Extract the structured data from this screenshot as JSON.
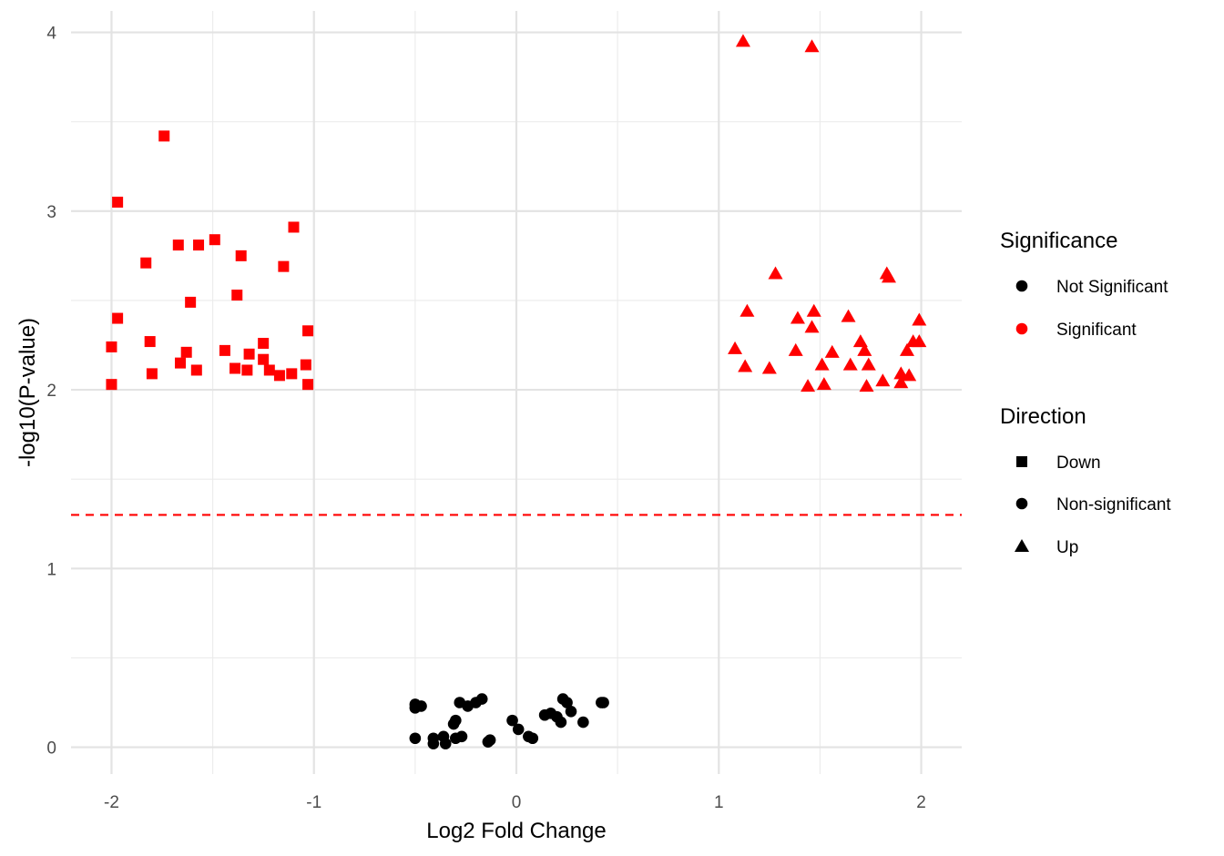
{
  "chart_data": {
    "type": "scatter",
    "title": "",
    "xlabel": "Log2 Fold Change",
    "ylabel": "-log10(P-value)",
    "xlim": [
      -2.2,
      2.2
    ],
    "ylim": [
      -0.15,
      4.12
    ],
    "x_ticks": [
      -2,
      -1,
      0,
      1,
      2
    ],
    "x_tick_labels": [
      "-2",
      "-1",
      "0",
      "1",
      "2"
    ],
    "y_ticks": [
      0,
      1,
      2,
      3,
      4
    ],
    "y_tick_labels": [
      "0",
      "1",
      "2",
      "3",
      "4"
    ],
    "grid": true,
    "threshold": {
      "y": 1.3,
      "style": "dashed",
      "color": "#ff0000"
    },
    "colors": {
      "Significant": "#ff0000",
      "Not Significant": "#000000"
    },
    "legends": [
      {
        "title": "Significance",
        "entries": [
          {
            "label": "Not Significant",
            "shape": "circle",
            "color": "#000000"
          },
          {
            "label": "Significant",
            "shape": "circle",
            "color": "#ff0000"
          }
        ]
      },
      {
        "title": "Direction",
        "entries": [
          {
            "label": "Down",
            "shape": "square",
            "color": "#000000"
          },
          {
            "label": "Non-significant",
            "shape": "circle",
            "color": "#000000"
          },
          {
            "label": "Up",
            "shape": "triangle",
            "color": "#000000"
          }
        ]
      }
    ],
    "legend_position": "right",
    "series": [
      {
        "significance": "Significant",
        "direction": "Down",
        "shape": "square",
        "color": "#ff0000",
        "points": [
          [
            -1.97,
            3.05
          ],
          [
            -1.74,
            3.42
          ],
          [
            -1.83,
            2.71
          ],
          [
            -1.67,
            2.81
          ],
          [
            -1.57,
            2.81
          ],
          [
            -1.49,
            2.84
          ],
          [
            -1.36,
            2.75
          ],
          [
            -1.1,
            2.91
          ],
          [
            -1.15,
            2.69
          ],
          [
            -1.38,
            2.53
          ],
          [
            -1.61,
            2.49
          ],
          [
            -1.97,
            2.4
          ],
          [
            -2.0,
            2.24
          ],
          [
            -1.81,
            2.27
          ],
          [
            -1.63,
            2.21
          ],
          [
            -1.44,
            2.22
          ],
          [
            -1.32,
            2.2
          ],
          [
            -1.25,
            2.26
          ],
          [
            -1.03,
            2.33
          ],
          [
            -1.66,
            2.15
          ],
          [
            -1.58,
            2.11
          ],
          [
            -1.39,
            2.12
          ],
          [
            -1.33,
            2.11
          ],
          [
            -1.25,
            2.17
          ],
          [
            -1.22,
            2.11
          ],
          [
            -1.17,
            2.08
          ],
          [
            -1.11,
            2.09
          ],
          [
            -1.04,
            2.14
          ],
          [
            -1.8,
            2.09
          ],
          [
            -2.0,
            2.03
          ],
          [
            -1.03,
            2.03
          ]
        ]
      },
      {
        "significance": "Significant",
        "direction": "Up",
        "shape": "triangle",
        "color": "#ff0000",
        "points": [
          [
            1.12,
            3.95
          ],
          [
            1.46,
            3.92
          ],
          [
            1.28,
            2.65
          ],
          [
            1.83,
            2.65
          ],
          [
            1.84,
            2.63
          ],
          [
            1.14,
            2.44
          ],
          [
            1.47,
            2.44
          ],
          [
            1.39,
            2.4
          ],
          [
            1.64,
            2.41
          ],
          [
            1.46,
            2.35
          ],
          [
            1.99,
            2.39
          ],
          [
            1.08,
            2.23
          ],
          [
            1.38,
            2.22
          ],
          [
            1.56,
            2.21
          ],
          [
            1.7,
            2.27
          ],
          [
            1.72,
            2.22
          ],
          [
            1.93,
            2.22
          ],
          [
            1.96,
            2.27
          ],
          [
            1.99,
            2.27
          ],
          [
            1.13,
            2.13
          ],
          [
            1.25,
            2.12
          ],
          [
            1.51,
            2.14
          ],
          [
            1.65,
            2.14
          ],
          [
            1.74,
            2.14
          ],
          [
            1.9,
            2.09
          ],
          [
            1.94,
            2.08
          ],
          [
            1.44,
            2.02
          ],
          [
            1.52,
            2.03
          ],
          [
            1.73,
            2.02
          ],
          [
            1.81,
            2.05
          ],
          [
            1.9,
            2.04
          ]
        ]
      },
      {
        "significance": "Not Significant",
        "direction": "Non-significant",
        "shape": "circle",
        "color": "#000000",
        "points": [
          [
            -0.5,
            0.24
          ],
          [
            -0.5,
            0.22
          ],
          [
            -0.47,
            0.23
          ],
          [
            -0.5,
            0.05
          ],
          [
            -0.41,
            0.05
          ],
          [
            -0.41,
            0.02
          ],
          [
            -0.36,
            0.06
          ],
          [
            -0.35,
            0.02
          ],
          [
            -0.31,
            0.13
          ],
          [
            -0.3,
            0.15
          ],
          [
            -0.3,
            0.05
          ],
          [
            -0.27,
            0.06
          ],
          [
            -0.28,
            0.25
          ],
          [
            -0.24,
            0.23
          ],
          [
            -0.2,
            0.25
          ],
          [
            -0.17,
            0.27
          ],
          [
            -0.14,
            0.03
          ],
          [
            -0.13,
            0.04
          ],
          [
            -0.02,
            0.15
          ],
          [
            0.01,
            0.1
          ],
          [
            0.06,
            0.06
          ],
          [
            0.08,
            0.05
          ],
          [
            0.14,
            0.18
          ],
          [
            0.17,
            0.19
          ],
          [
            0.2,
            0.17
          ],
          [
            0.22,
            0.14
          ],
          [
            0.23,
            0.27
          ],
          [
            0.25,
            0.25
          ],
          [
            0.27,
            0.2
          ],
          [
            0.33,
            0.14
          ],
          [
            0.42,
            0.25
          ],
          [
            0.43,
            0.25
          ]
        ]
      }
    ]
  }
}
